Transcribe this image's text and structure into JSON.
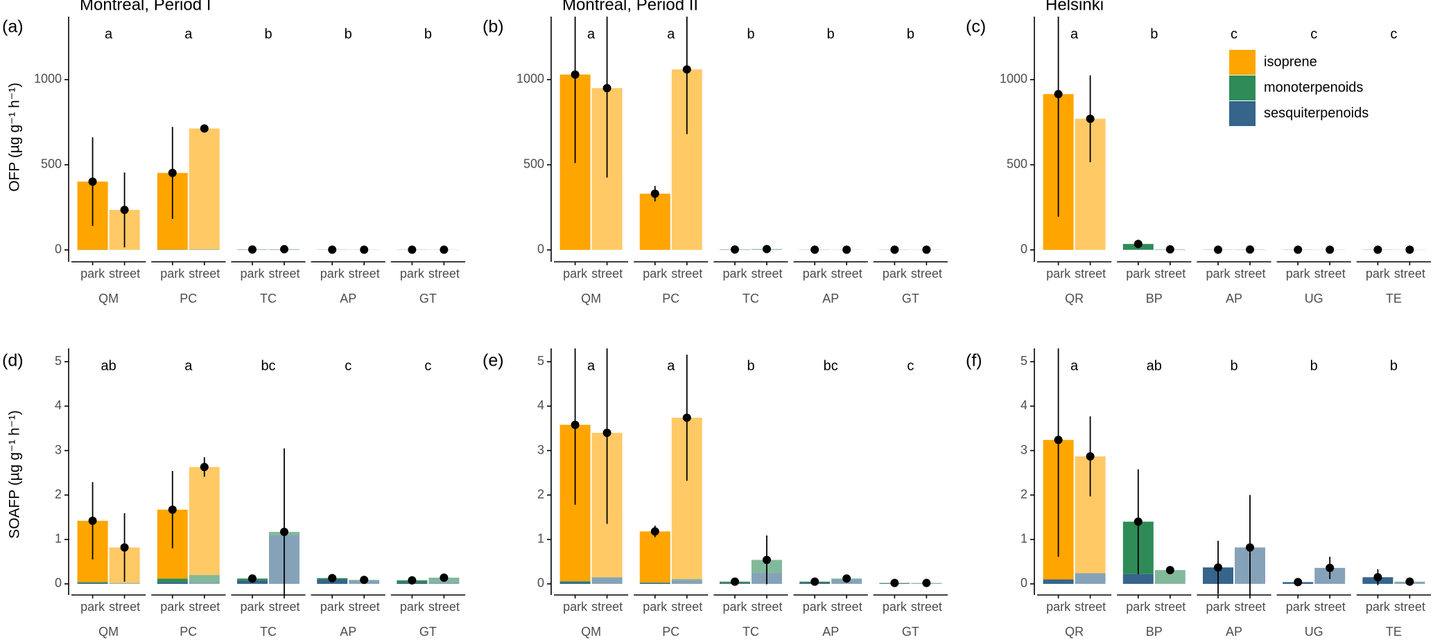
{
  "chart_data": [
    {
      "type": "bar",
      "panel": "(a)",
      "title": "Montreal, Period I",
      "ylabel": "OFP (µg g⁻¹ h⁻¹)",
      "groups": [
        "QM",
        "PC",
        "TC",
        "AP",
        "GT"
      ],
      "letters": [
        "a",
        "a",
        "b",
        "b",
        "b"
      ],
      "categories": [
        "park",
        "street",
        "park",
        "street",
        "park",
        "street",
        "park",
        "street",
        "park",
        "street"
      ],
      "series": [
        {
          "color": "#FFA500",
          "values": [
            400,
            235,
            450,
            710,
            0,
            0,
            0,
            0,
            0,
            0
          ]
        },
        {
          "color": "#2E8B57",
          "values": [
            1,
            0,
            2,
            3,
            1,
            2,
            0,
            0,
            1,
            1
          ]
        },
        {
          "color": "#36648B",
          "values": [
            0,
            0,
            0,
            0,
            1,
            2,
            1,
            1,
            0,
            0
          ]
        }
      ],
      "means": [
        401,
        235,
        452,
        713,
        2,
        4,
        1,
        1,
        1,
        1
      ],
      "errors": [
        260,
        220,
        270,
        8,
        1,
        2,
        0.5,
        0.5,
        0.5,
        0.5
      ],
      "ylim": [
        -70,
        1370
      ],
      "yticks": [
        0,
        500,
        1000
      ]
    },
    {
      "type": "bar",
      "panel": "(b)",
      "title": "Montreal, Period II",
      "groups": [
        "QM",
        "PC",
        "TC",
        "AP",
        "GT"
      ],
      "letters": [
        "a",
        "a",
        "b",
        "b",
        "b"
      ],
      "categories": [
        "park",
        "street",
        "park",
        "street",
        "park",
        "street",
        "park",
        "street",
        "park",
        "street"
      ],
      "series": [
        {
          "color": "#FFA500",
          "values": [
            1030,
            950,
            330,
            1060,
            0,
            0,
            0,
            0,
            0,
            0
          ]
        },
        {
          "color": "#2E8B57",
          "values": [
            0,
            0,
            0,
            0,
            1,
            3,
            1,
            1,
            1,
            1
          ]
        },
        {
          "color": "#36648B",
          "values": [
            0,
            0,
            0,
            0,
            1,
            2,
            0,
            0,
            0,
            0
          ]
        }
      ],
      "means": [
        1030,
        950,
        330,
        1060,
        2,
        5,
        1,
        1,
        1,
        1
      ],
      "errors": [
        520,
        525,
        45,
        380,
        1,
        2,
        0.5,
        0.5,
        0.5,
        0.5
      ],
      "ylim": [
        -70,
        1370
      ],
      "yticks": [
        0,
        500,
        1000
      ]
    },
    {
      "type": "bar",
      "panel": "(c)",
      "title": "Helsinki",
      "legend": "top-right",
      "groups": [
        "QR",
        "BP",
        "AP",
        "UG",
        "TE"
      ],
      "letters": [
        "a",
        "b",
        "c",
        "c",
        "c"
      ],
      "categories": [
        "park",
        "street",
        "park",
        "street",
        "park",
        "street",
        "park",
        "street",
        "park",
        "street"
      ],
      "series": [
        {
          "name": "isoprene",
          "color": "#FFA500",
          "values": [
            915,
            770,
            0,
            0,
            0,
            0,
            0,
            0,
            0,
            0
          ]
        },
        {
          "name": "monoterpenoids",
          "color": "#2E8B57",
          "values": [
            0,
            0,
            33,
            2,
            0,
            1,
            0,
            0,
            0,
            1
          ]
        },
        {
          "name": "sesquiterpenoids",
          "color": "#36648B",
          "values": [
            0,
            0,
            2,
            1,
            1,
            1,
            1,
            1,
            1,
            0
          ]
        }
      ],
      "means": [
        915,
        770,
        35,
        3,
        1,
        2,
        1,
        1,
        1,
        1
      ],
      "errors": [
        720,
        255,
        25,
        2,
        0.5,
        1,
        0.5,
        0.5,
        0.5,
        0.5
      ],
      "ylim": [
        -70,
        1370
      ],
      "yticks": [
        0,
        500,
        1000
      ]
    },
    {
      "type": "bar",
      "panel": "(d)",
      "ylabel": "SOAFP (µg g⁻¹ h⁻¹)",
      "groups": [
        "QM",
        "PC",
        "TC",
        "AP",
        "GT"
      ],
      "letters": [
        "ab",
        "a",
        "bc",
        "c",
        "c"
      ],
      "categories": [
        "park",
        "street",
        "park",
        "street",
        "park",
        "street",
        "park",
        "street",
        "park",
        "street"
      ],
      "series": [
        {
          "color": "#FFA500",
          "values": [
            1.38,
            0.8,
            1.55,
            2.43,
            0,
            0,
            0,
            0,
            0,
            0
          ]
        },
        {
          "color": "#2E8B57",
          "values": [
            0.02,
            0.01,
            0.08,
            0.17,
            0.04,
            0.07,
            0.03,
            0.02,
            0.05,
            0.1
          ]
        },
        {
          "color": "#36648B",
          "values": [
            0.02,
            0.01,
            0.04,
            0.03,
            0.08,
            1.1,
            0.1,
            0.07,
            0.03,
            0.04
          ]
        }
      ],
      "means": [
        1.42,
        0.82,
        1.67,
        2.63,
        0.12,
        1.17,
        0.13,
        0.09,
        0.08,
        0.14
      ],
      "errors": [
        0.87,
        0.77,
        0.87,
        0.22,
        0.03,
        1.88,
        0.08,
        0.03,
        0.03,
        0.07
      ],
      "ylim": [
        -0.25,
        5.3
      ],
      "yticks": [
        0,
        1,
        2,
        3,
        4,
        5
      ]
    },
    {
      "type": "bar",
      "panel": "(e)",
      "groups": [
        "QM",
        "PC",
        "TC",
        "AP",
        "GT"
      ],
      "letters": [
        "a",
        "a",
        "b",
        "bc",
        "c"
      ],
      "categories": [
        "park",
        "street",
        "park",
        "street",
        "park",
        "street",
        "park",
        "street",
        "park",
        "street"
      ],
      "series": [
        {
          "color": "#FFA500",
          "values": [
            3.52,
            3.25,
            1.15,
            3.63,
            0,
            0,
            0,
            0,
            0,
            0
          ]
        },
        {
          "color": "#2E8B57",
          "values": [
            0.02,
            0.01,
            0.01,
            0.03,
            0.03,
            0.3,
            0.02,
            0.02,
            0.01,
            0.01
          ]
        },
        {
          "color": "#36648B",
          "values": [
            0.04,
            0.14,
            0.02,
            0.08,
            0.02,
            0.24,
            0.03,
            0.1,
            0.01,
            0.01
          ]
        }
      ],
      "means": [
        3.58,
        3.4,
        1.18,
        3.74,
        0.05,
        0.54,
        0.05,
        0.12,
        0.02,
        0.02
      ],
      "errors": [
        1.8,
        2.05,
        0.13,
        1.42,
        0.02,
        0.55,
        0.02,
        0.03,
        0.01,
        0.01
      ],
      "ylim": [
        -0.25,
        5.3
      ],
      "yticks": [
        0,
        1,
        2,
        3,
        4,
        5
      ]
    },
    {
      "type": "bar",
      "panel": "(f)",
      "groups": [
        "QR",
        "BP",
        "AP",
        "UG",
        "TE"
      ],
      "letters": [
        "a",
        "ab",
        "b",
        "b",
        "b"
      ],
      "categories": [
        "park",
        "street",
        "park",
        "street",
        "park",
        "street",
        "park",
        "street",
        "park",
        "street"
      ],
      "series": [
        {
          "color": "#FFA500",
          "values": [
            3.14,
            2.63,
            0,
            0,
            0,
            0,
            0,
            0,
            0,
            0
          ]
        },
        {
          "color": "#2E8B57",
          "values": [
            0,
            0,
            1.18,
            0.3,
            0,
            0,
            0,
            0,
            0,
            0.01
          ]
        },
        {
          "color": "#36648B",
          "values": [
            0.1,
            0.24,
            0.22,
            0.01,
            0.37,
            0.82,
            0.04,
            0.36,
            0.15,
            0.04
          ]
        }
      ],
      "means": [
        3.24,
        2.87,
        1.4,
        0.31,
        0.37,
        0.82,
        0.04,
        0.36,
        0.15,
        0.05
      ],
      "errors": [
        2.63,
        0.9,
        1.18,
        0.05,
        0.6,
        1.18,
        0.02,
        0.25,
        0.18,
        0.02
      ],
      "ylim": [
        -0.25,
        5.3
      ],
      "yticks": [
        0,
        1,
        2,
        3,
        4,
        5
      ]
    }
  ]
}
